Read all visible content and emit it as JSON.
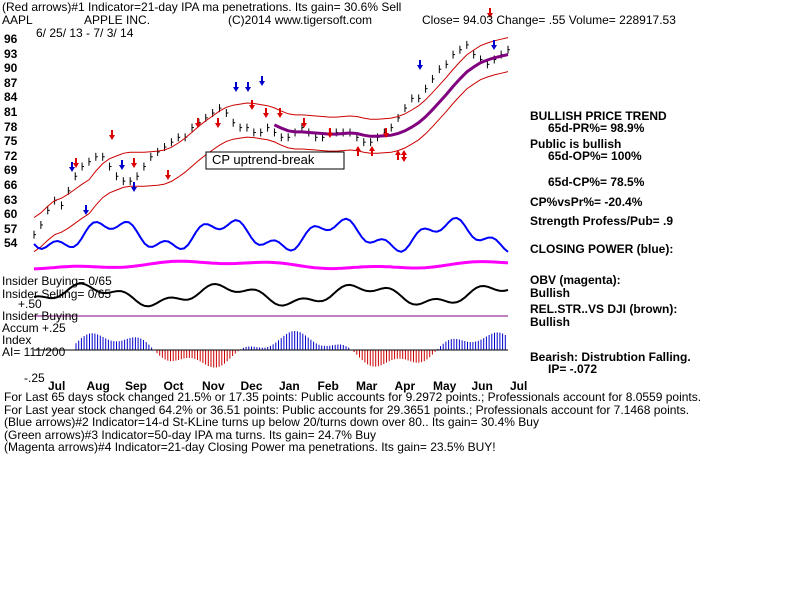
{
  "header": {
    "line1": "(Red arrows)#1 Indicator=21-day IPA ma penetrations. Its gain= 30.6% Sell",
    "symbol": "AAPL",
    "company": "APPLE INC.",
    "copyright": "(C)2014 www.tigersoft.com",
    "quote": "Close=  94.03  Change= .55 Volume= 228917.53",
    "range": "6/ 25/ 13 - 7/ 3/ 14"
  },
  "price_axis": {
    "ticks": [
      "96",
      "93",
      "90",
      "87",
      "84",
      "81",
      "78",
      "75",
      "72",
      "69",
      "66",
      "63",
      "60",
      "57",
      "54"
    ]
  },
  "annotation": "CP uptrend-break",
  "right_panel": {
    "trend_title": "BULLISH PRICE TREND",
    "pr": "65d-PR%= 98.9%",
    "public": "Public is bullish",
    "op": "65d-OP%= 100%",
    "cp": "65d-CP%= 78.5%",
    "cpvspr": "CP%vsPr%= -20.4%",
    "strength": "Strength Profess/Pub= .9",
    "closing_power": "CLOSING POWER (blue):",
    "obv": "OBV (magenta):",
    "obv_state": "Bullish",
    "relstr": "REL.STR..VS DJI (brown):",
    "relstr_state": "Bullish",
    "bearish": "Bearish: Distrubtion Falling.",
    "ip": "IP= -.072"
  },
  "lower_labels": {
    "insider_buying": "Insider Buying= 0/65",
    "insider_selling": "Insider Selling= 0/65",
    "plus50": "+.50",
    "insider_buying2": "Insider Buying",
    "accum": "Accum  +.25",
    "index": "Index",
    "ai": "AI= 111/200",
    "minus25": "-.25"
  },
  "months": [
    "Jul",
    "Aug",
    "Sep",
    "Oct",
    "Nov",
    "Dec",
    "Jan",
    "Feb",
    "Mar",
    "Apr",
    "May",
    "Jun",
    "Jul"
  ],
  "footer": {
    "l1": "For Last 65 days stock changed  21.5% or  17.35 points:  Public accounts for  9.2972 points.;  Professionals account for  8.0559 points.",
    "l2": "For Last year stock changed  64.2% or  36.51 points:  Public accounts for  29.3651 points.;  Professionals account for  7.1468 points.",
    "l3": "(Blue arrows)#2 Indicator=14-d St-KLine turns up below 20/turns down over 80.. Its gain= 30.4% Buy",
    "l4": "(Green arrows)#3 Indicator=50-day IPA ma turns. Its gain= 24.7% Buy",
    "l5": "(Magenta arrows)#4 Indicator=21-day Closing Power ma penetrations. Its gain= 23.5% BUY!"
  },
  "colors": {
    "band": "#cc0000",
    "ma": "#800080",
    "closing_power": "#0000ff",
    "obv": "#ff00ff",
    "brown": "#8b4513",
    "accum_pos": "#0000cc",
    "accum_neg": "#cc0000"
  },
  "chart_data": {
    "type": "line",
    "title": "APPLE INC.",
    "x_range": [
      "6/25/13",
      "7/3/14"
    ],
    "ylim": [
      52,
      97
    ],
    "series": [
      {
        "values": [
          56,
          58,
          61,
          63,
          62,
          65,
          68,
          70,
          71,
          72,
          72,
          70,
          68,
          67,
          67,
          68,
          70,
          72,
          73,
          74,
          75,
          76,
          76,
          78,
          79,
          80,
          81,
          82,
          81,
          79,
          78,
          78,
          77,
          77,
          78,
          77,
          76,
          76,
          77,
          78,
          77,
          76,
          76,
          77,
          77,
          77,
          77,
          76,
          75,
          75,
          76,
          77,
          78,
          80,
          82,
          84,
          84,
          86,
          88,
          90,
          91,
          93,
          94,
          95,
          93,
          92,
          91,
          92,
          93,
          94
        ]
      }
    ]
  }
}
